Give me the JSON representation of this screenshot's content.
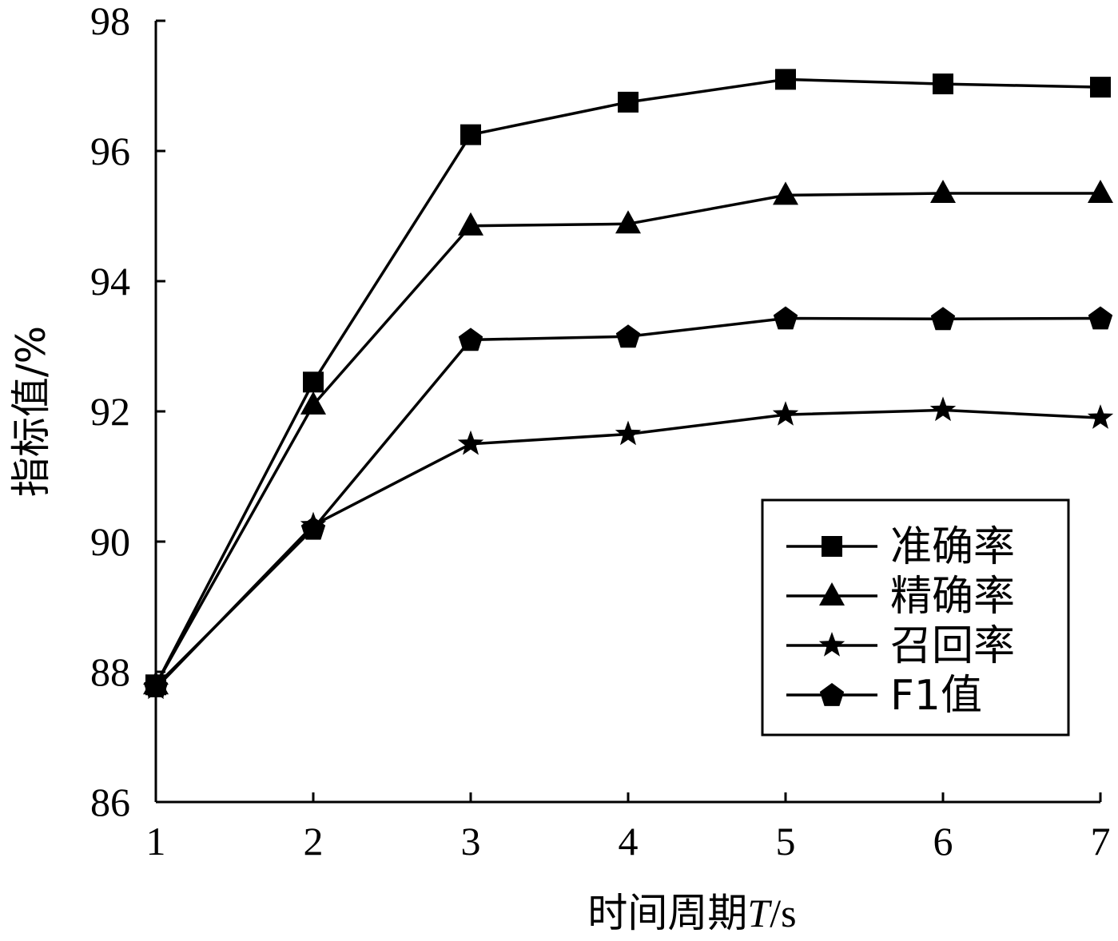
{
  "chart_data": {
    "type": "line",
    "x": [
      1,
      2,
      3,
      4,
      5,
      6,
      7
    ],
    "xlabel": "时间周期",
    "xlabel_var": "T",
    "xlabel_unit": "/s",
    "ylabel": "指标值/%",
    "xlim": [
      1,
      7
    ],
    "ylim": [
      86,
      98
    ],
    "yticks": [
      86,
      88,
      90,
      92,
      94,
      96,
      98
    ],
    "xticks": [
      1,
      2,
      3,
      4,
      5,
      6,
      7
    ],
    "grid": false,
    "legend_position": "bottom-right",
    "series": [
      {
        "name": "准确率",
        "marker": "square",
        "values": [
          87.8,
          92.45,
          96.25,
          96.75,
          97.1,
          97.03,
          96.98
        ]
      },
      {
        "name": "精确率",
        "marker": "triangle",
        "values": [
          87.8,
          92.1,
          94.85,
          94.88,
          95.32,
          95.35,
          95.35
        ]
      },
      {
        "name": "召回率",
        "marker": "star",
        "values": [
          87.75,
          90.25,
          91.5,
          91.65,
          91.95,
          92.02,
          91.9
        ]
      },
      {
        "name": "F1值",
        "marker": "pentagon",
        "values": [
          87.78,
          90.2,
          93.1,
          93.15,
          93.43,
          93.42,
          93.43
        ]
      }
    ]
  }
}
